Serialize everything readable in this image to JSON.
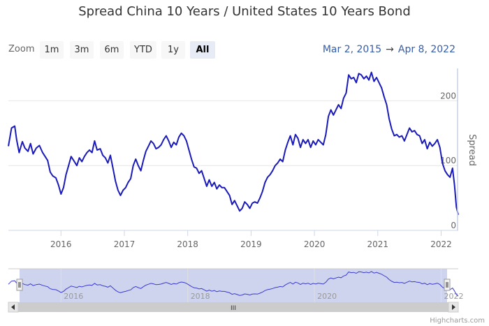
{
  "title": "Spread China 10 Years / United States 10 Years Bond",
  "range_selector": {
    "label": "Zoom",
    "buttons": [
      {
        "label": "1m",
        "active": false
      },
      {
        "label": "3m",
        "active": false
      },
      {
        "label": "6m",
        "active": false
      },
      {
        "label": "YTD",
        "active": false
      },
      {
        "label": "1y",
        "active": false
      },
      {
        "label": "All",
        "active": true
      }
    ]
  },
  "date_range": {
    "from": "Mar 2, 2015",
    "arrow": "→",
    "to": "Apr 8, 2022"
  },
  "credits": "Highcharts.com",
  "navigator": {
    "scrollbar_grip": "III",
    "left_handle": "||",
    "right_handle": "||"
  },
  "colors": {
    "series": "#1a1ab8",
    "navigator_line": "#3b3bd0",
    "navigator_mask": "#c5cdea",
    "grid": "#e6e6e6"
  },
  "chart_data": {
    "type": "line",
    "title": "Spread China 10 Years / United States 10 Years Bond",
    "ylabel": "Spread",
    "ylim": [
      0,
      250
    ],
    "xlim": [
      2015.17,
      2022.27
    ],
    "yticks": [
      0,
      100,
      200
    ],
    "xticks": [
      "2016",
      "2017",
      "2018",
      "2019",
      "2020",
      "2021",
      "2022"
    ],
    "navigator_xticks": [
      "2016",
      "2018",
      "2020",
      "2022"
    ],
    "series": [
      {
        "name": "Spread",
        "points": [
          [
            2015.17,
            130
          ],
          [
            2015.22,
            158
          ],
          [
            2015.27,
            161
          ],
          [
            2015.3,
            140
          ],
          [
            2015.34,
            120
          ],
          [
            2015.39,
            137
          ],
          [
            2015.43,
            127
          ],
          [
            2015.48,
            122
          ],
          [
            2015.52,
            134
          ],
          [
            2015.56,
            118
          ],
          [
            2015.61,
            127
          ],
          [
            2015.66,
            131
          ],
          [
            2015.71,
            120
          ],
          [
            2015.75,
            114
          ],
          [
            2015.79,
            108
          ],
          [
            2015.83,
            90
          ],
          [
            2015.87,
            84
          ],
          [
            2015.92,
            81
          ],
          [
            2015.96,
            70
          ],
          [
            2016.0,
            56
          ],
          [
            2016.04,
            66
          ],
          [
            2016.08,
            86
          ],
          [
            2016.12,
            100
          ],
          [
            2016.16,
            114
          ],
          [
            2016.2,
            108
          ],
          [
            2016.25,
            100
          ],
          [
            2016.29,
            112
          ],
          [
            2016.33,
            106
          ],
          [
            2016.37,
            114
          ],
          [
            2016.41,
            120
          ],
          [
            2016.45,
            124
          ],
          [
            2016.49,
            120
          ],
          [
            2016.53,
            138
          ],
          [
            2016.57,
            124
          ],
          [
            2016.62,
            126
          ],
          [
            2016.66,
            116
          ],
          [
            2016.7,
            112
          ],
          [
            2016.74,
            104
          ],
          [
            2016.78,
            116
          ],
          [
            2016.82,
            96
          ],
          [
            2016.86,
            76
          ],
          [
            2016.9,
            62
          ],
          [
            2016.94,
            54
          ],
          [
            2016.98,
            62
          ],
          [
            2017.02,
            66
          ],
          [
            2017.06,
            74
          ],
          [
            2017.1,
            80
          ],
          [
            2017.14,
            100
          ],
          [
            2017.18,
            110
          ],
          [
            2017.22,
            100
          ],
          [
            2017.26,
            92
          ],
          [
            2017.3,
            108
          ],
          [
            2017.34,
            122
          ],
          [
            2017.38,
            130
          ],
          [
            2017.42,
            138
          ],
          [
            2017.46,
            134
          ],
          [
            2017.5,
            126
          ],
          [
            2017.54,
            128
          ],
          [
            2017.58,
            132
          ],
          [
            2017.62,
            140
          ],
          [
            2017.66,
            146
          ],
          [
            2017.7,
            138
          ],
          [
            2017.74,
            128
          ],
          [
            2017.78,
            136
          ],
          [
            2017.82,
            132
          ],
          [
            2017.86,
            144
          ],
          [
            2017.9,
            150
          ],
          [
            2017.94,
            146
          ],
          [
            2017.98,
            138
          ],
          [
            2018.02,
            124
          ],
          [
            2018.06,
            110
          ],
          [
            2018.1,
            98
          ],
          [
            2018.14,
            96
          ],
          [
            2018.18,
            88
          ],
          [
            2018.22,
            92
          ],
          [
            2018.26,
            80
          ],
          [
            2018.3,
            68
          ],
          [
            2018.34,
            78
          ],
          [
            2018.38,
            68
          ],
          [
            2018.42,
            74
          ],
          [
            2018.46,
            64
          ],
          [
            2018.5,
            70
          ],
          [
            2018.54,
            66
          ],
          [
            2018.58,
            66
          ],
          [
            2018.62,
            60
          ],
          [
            2018.66,
            54
          ],
          [
            2018.7,
            40
          ],
          [
            2018.74,
            46
          ],
          [
            2018.78,
            38
          ],
          [
            2018.82,
            30
          ],
          [
            2018.86,
            34
          ],
          [
            2018.9,
            44
          ],
          [
            2018.94,
            40
          ],
          [
            2018.98,
            34
          ],
          [
            2019.02,
            42
          ],
          [
            2019.06,
            44
          ],
          [
            2019.1,
            42
          ],
          [
            2019.14,
            50
          ],
          [
            2019.18,
            60
          ],
          [
            2019.22,
            74
          ],
          [
            2019.26,
            82
          ],
          [
            2019.3,
            86
          ],
          [
            2019.34,
            92
          ],
          [
            2019.38,
            100
          ],
          [
            2019.42,
            104
          ],
          [
            2019.46,
            110
          ],
          [
            2019.5,
            106
          ],
          [
            2019.54,
            124
          ],
          [
            2019.58,
            136
          ],
          [
            2019.62,
            146
          ],
          [
            2019.66,
            132
          ],
          [
            2019.7,
            148
          ],
          [
            2019.74,
            142
          ],
          [
            2019.78,
            128
          ],
          [
            2019.82,
            140
          ],
          [
            2019.86,
            134
          ],
          [
            2019.9,
            140
          ],
          [
            2019.94,
            128
          ],
          [
            2019.98,
            138
          ],
          [
            2020.02,
            132
          ],
          [
            2020.06,
            140
          ],
          [
            2020.1,
            136
          ],
          [
            2020.14,
            132
          ],
          [
            2020.18,
            148
          ],
          [
            2020.22,
            176
          ],
          [
            2020.26,
            186
          ],
          [
            2020.3,
            178
          ],
          [
            2020.34,
            186
          ],
          [
            2020.38,
            194
          ],
          [
            2020.42,
            188
          ],
          [
            2020.46,
            204
          ],
          [
            2020.5,
            212
          ],
          [
            2020.54,
            240
          ],
          [
            2020.58,
            234
          ],
          [
            2020.62,
            236
          ],
          [
            2020.66,
            228
          ],
          [
            2020.7,
            242
          ],
          [
            2020.74,
            240
          ],
          [
            2020.78,
            234
          ],
          [
            2020.82,
            238
          ],
          [
            2020.86,
            232
          ],
          [
            2020.9,
            244
          ],
          [
            2020.94,
            230
          ],
          [
            2020.98,
            236
          ],
          [
            2021.02,
            228
          ],
          [
            2021.06,
            220
          ],
          [
            2021.1,
            206
          ],
          [
            2021.14,
            194
          ],
          [
            2021.18,
            172
          ],
          [
            2021.22,
            156
          ],
          [
            2021.26,
            146
          ],
          [
            2021.3,
            148
          ],
          [
            2021.34,
            144
          ],
          [
            2021.38,
            146
          ],
          [
            2021.42,
            138
          ],
          [
            2021.46,
            148
          ],
          [
            2021.5,
            158
          ],
          [
            2021.54,
            152
          ],
          [
            2021.58,
            154
          ],
          [
            2021.62,
            148
          ],
          [
            2021.66,
            146
          ],
          [
            2021.7,
            134
          ],
          [
            2021.74,
            140
          ],
          [
            2021.78,
            126
          ],
          [
            2021.82,
            136
          ],
          [
            2021.86,
            130
          ],
          [
            2021.9,
            134
          ],
          [
            2021.94,
            140
          ],
          [
            2021.98,
            128
          ],
          [
            2022.02,
            104
          ],
          [
            2022.06,
            92
          ],
          [
            2022.1,
            86
          ],
          [
            2022.14,
            82
          ],
          [
            2022.18,
            96
          ],
          [
            2022.21,
            70
          ],
          [
            2022.24,
            36
          ],
          [
            2022.27,
            24
          ]
        ]
      }
    ]
  }
}
